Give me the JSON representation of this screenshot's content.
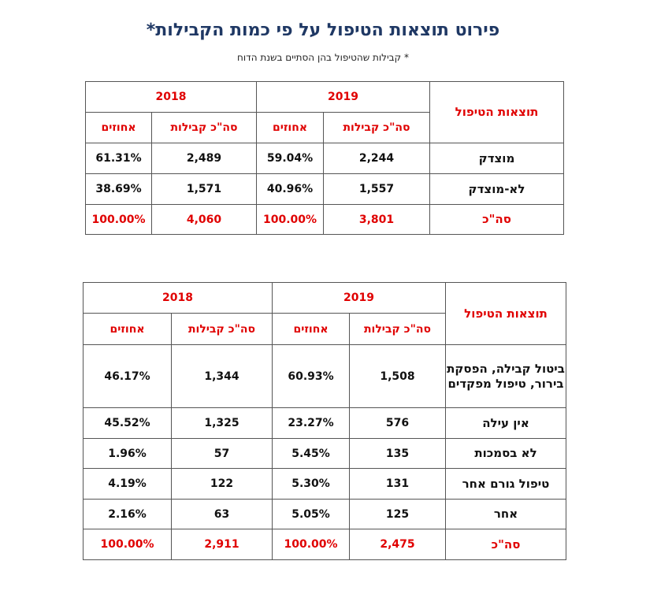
{
  "title": "פירוט תוצאות הטיפול על פי כמות הקבילות*",
  "subtitle": "* קבילות שהטיפול בהן הסתיים בשנת הדוח",
  "accent_color": "#e00000",
  "title_color": "#1f3864",
  "tables": [
    {
      "label_header": "תוצאות הטיפול",
      "years": [
        "2019",
        "2018"
      ],
      "sub_headers": [
        "סה\"כ קבילות",
        "אחוזים"
      ],
      "rows": [
        {
          "label": "מוצדק",
          "cells": [
            "2,244",
            "59.04%",
            "2,489",
            "61.31%"
          ]
        },
        {
          "label": "לא-מוצדק",
          "cells": [
            "1,557",
            "40.96%",
            "1,571",
            "38.69%"
          ]
        },
        {
          "label": "סה\"כ",
          "cells": [
            "3,801",
            "100.00%",
            "4,060",
            "100.00%"
          ],
          "total": true
        }
      ]
    },
    {
      "label_header": "תוצאות הטיפול",
      "years": [
        "2019",
        "2018"
      ],
      "sub_headers": [
        "סה\"כ קבילות",
        "אחוזים"
      ],
      "rows": [
        {
          "label": "ביטול קבילה, הפסקת בירור, טיפול מפקדים",
          "cells": [
            "1,508",
            "60.93%",
            "1,344",
            "46.17%"
          ]
        },
        {
          "label": "אין עילה",
          "cells": [
            "576",
            "23.27%",
            "1,325",
            "45.52%"
          ]
        },
        {
          "label": "לא בסמכות",
          "cells": [
            "135",
            "5.45%",
            "57",
            "1.96%"
          ]
        },
        {
          "label": "טיפול גורם אחר",
          "cells": [
            "131",
            "5.30%",
            "122",
            "4.19%"
          ]
        },
        {
          "label": "אחר",
          "cells": [
            "125",
            "5.05%",
            "63",
            "2.16%"
          ]
        },
        {
          "label": "סה\"כ",
          "cells": [
            "2,475",
            "100.00%",
            "2,911",
            "100.00%"
          ],
          "total": true
        }
      ]
    }
  ]
}
